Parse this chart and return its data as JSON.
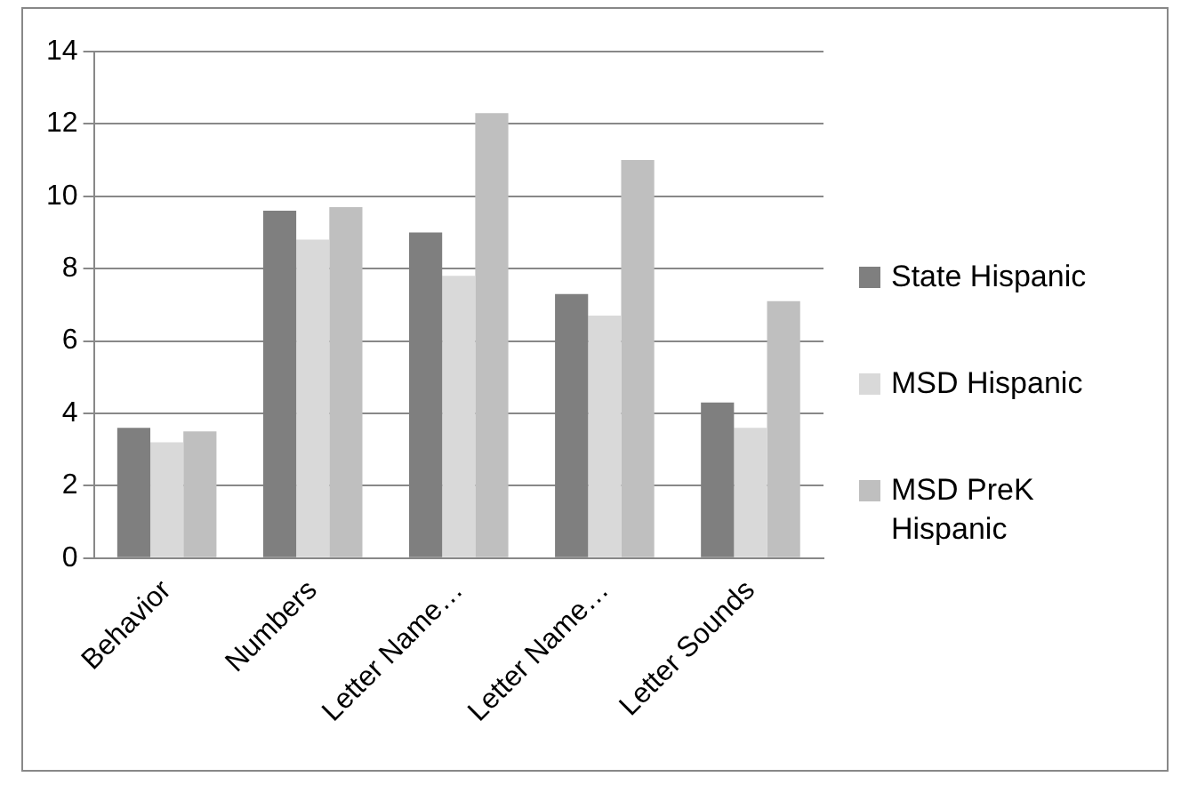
{
  "chart_data": {
    "type": "bar",
    "categories": [
      "Behavior",
      "Numbers",
      "Letter Name…",
      "Letter Name…",
      "Letter Sounds"
    ],
    "series": [
      {
        "name": "State Hispanic",
        "color": "#7f7f7f",
        "values": [
          3.6,
          9.6,
          9.0,
          7.3,
          4.3
        ]
      },
      {
        "name": "MSD Hispanic",
        "color": "#d9d9d9",
        "values": [
          3.2,
          8.8,
          7.8,
          6.7,
          3.6
        ]
      },
      {
        "name": "MSD PreK Hispanic",
        "color": "#bfbfbf",
        "values": [
          3.5,
          9.7,
          12.3,
          11.0,
          7.1
        ]
      }
    ],
    "ylim": [
      0,
      14
    ],
    "yticks": [
      0,
      2,
      4,
      6,
      8,
      10,
      12,
      14
    ],
    "grid": "y",
    "legend": "right"
  }
}
